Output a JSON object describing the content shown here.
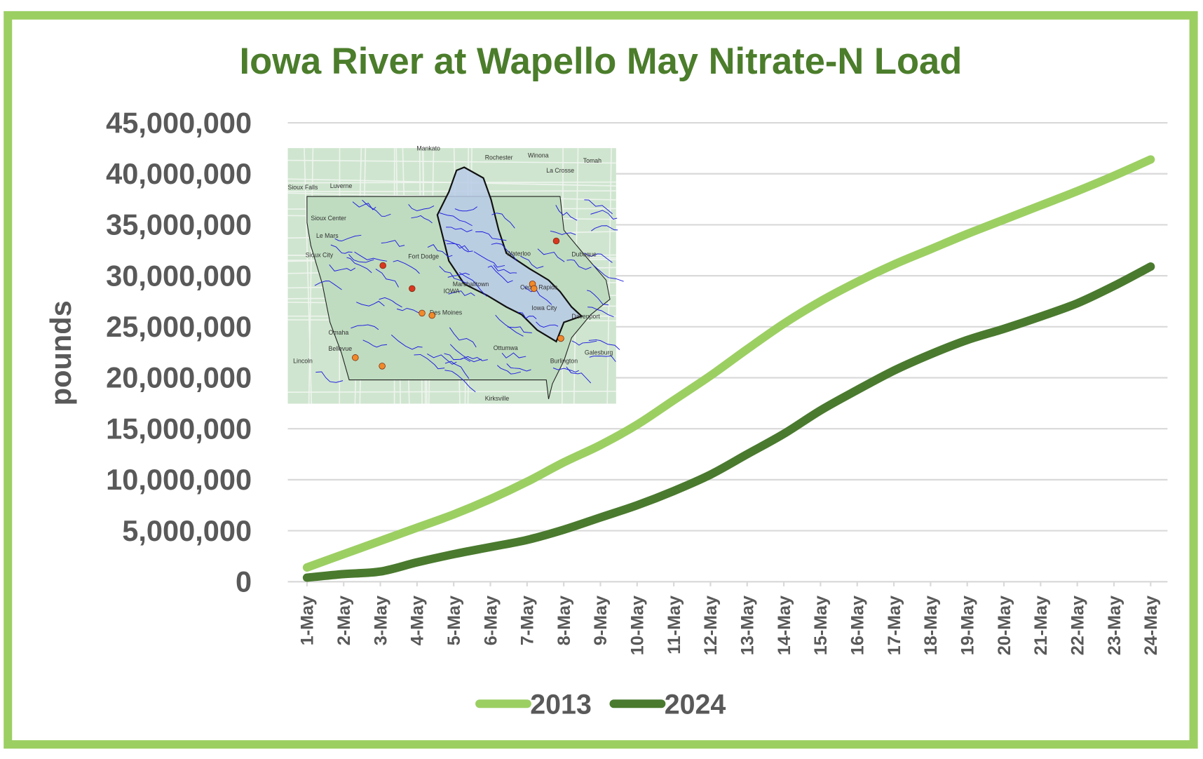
{
  "chart_data": {
    "type": "line",
    "title": "Iowa River at Wapello May Nitrate-N Load",
    "xlabel": "",
    "ylabel": "pounds",
    "ylim": [
      0,
      45000000
    ],
    "yticks": [
      0,
      5000000,
      10000000,
      15000000,
      20000000,
      25000000,
      30000000,
      35000000,
      40000000,
      45000000
    ],
    "ytick_labels": [
      "0",
      "5,000,000",
      "10,000,000",
      "15,000,000",
      "20,000,000",
      "25,000,000",
      "30,000,000",
      "35,000,000",
      "40,000,000",
      "45,000,000"
    ],
    "grid": true,
    "legend_position": "bottom",
    "categories": [
      "1-May",
      "2-May",
      "3-May",
      "4-May",
      "5-May",
      "6-May",
      "7-May",
      "8-May",
      "9-May",
      "10-May",
      "11-May",
      "12-May",
      "13-May",
      "14-May",
      "15-May",
      "16-May",
      "17-May",
      "18-May",
      "19-May",
      "20-May",
      "21-May",
      "22-May",
      "23-May",
      "24-May"
    ],
    "series": [
      {
        "name": "2013",
        "color": "#9ccf62",
        "values": [
          1400000,
          2700000,
          4000000,
          5300000,
          6600000,
          8100000,
          9800000,
          11700000,
          13400000,
          15400000,
          17800000,
          20200000,
          22800000,
          25300000,
          27500000,
          29400000,
          31100000,
          32600000,
          34100000,
          35500000,
          36900000,
          38300000,
          39800000,
          41400000
        ]
      },
      {
        "name": "2024",
        "color": "#4a7a2e",
        "values": [
          400000,
          750000,
          1000000,
          1900000,
          2700000,
          3400000,
          4100000,
          5100000,
          6300000,
          7500000,
          8900000,
          10500000,
          12500000,
          14500000,
          16800000,
          18800000,
          20700000,
          22300000,
          23700000,
          24800000,
          26000000,
          27300000,
          29000000,
          30900000
        ]
      }
    ]
  },
  "inset_map": {
    "labels": [
      "Mankato",
      "Rochester",
      "Winona",
      "Tomah",
      "La Crosse",
      "Sioux Falls",
      "Luverne",
      "Sioux Center",
      "Le Mars",
      "Sioux City",
      "Fort Dodge",
      "Waterloo",
      "Dubuque",
      "Marshalltown",
      "IOWA",
      "Cedar Rapids",
      "Des Moines",
      "Iowa City",
      "Davenport",
      "Omaha",
      "Bellevue",
      "Lincoln",
      "Ottumwa",
      "Galesburg",
      "Burlington",
      "Kirksville"
    ]
  },
  "colors": {
    "frame": "#9ccf62",
    "title": "#4b7d2b",
    "grid": "#d9d9d9"
  }
}
